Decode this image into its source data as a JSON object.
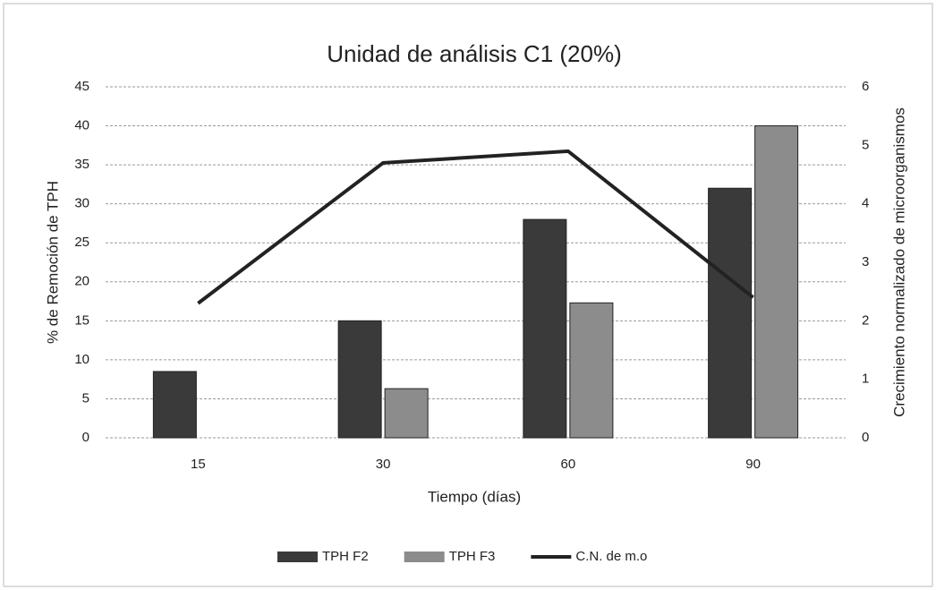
{
  "chart_data": {
    "type": "bar",
    "title": "Unidad de análisis C1 (20%)",
    "x_label": "Tiempo (días)",
    "y_label": "% de Remoción de TPH",
    "y2_label": "Crecimiento normalizado de microorganismos",
    "categories": [
      "15",
      "30",
      "60",
      "90"
    ],
    "series": [
      {
        "name": "TPH F2",
        "color": "#3a3a3a",
        "values": [
          8.5,
          15,
          28,
          32
        ]
      },
      {
        "name": "TPH F3",
        "color": "#8c8c8c",
        "values": [
          0,
          6.3,
          17.3,
          40
        ]
      },
      {
        "name": "C.N. de m.o",
        "color": "#222222",
        "type": "line",
        "axis": "y2",
        "values": [
          2.3,
          4.7,
          4.9,
          2.4
        ]
      }
    ],
    "ylim": [
      0,
      45
    ],
    "yticks": [
      0,
      5,
      10,
      15,
      20,
      25,
      30,
      35,
      40,
      45
    ],
    "y2lim": [
      0,
      6
    ],
    "y2ticks": [
      0,
      1,
      2,
      3,
      4,
      5,
      6
    ],
    "grid": true,
    "legend": "bottom"
  }
}
